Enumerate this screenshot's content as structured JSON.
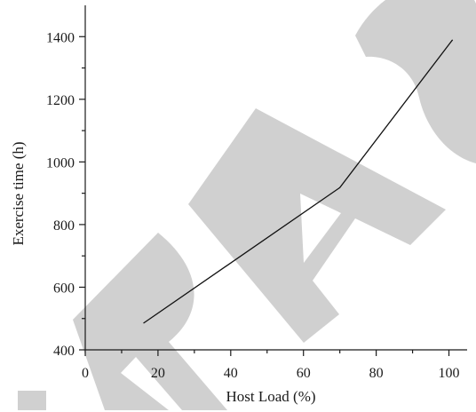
{
  "chart_data": {
    "type": "line",
    "title": "",
    "xlabel": "Host Load (%)",
    "ylabel": "Exercise time (h)",
    "xlim": [
      0,
      105
    ],
    "ylim": [
      400,
      1500
    ],
    "x_ticks": [
      0,
      20,
      40,
      60,
      80,
      100
    ],
    "y_ticks": [
      400,
      600,
      800,
      1000,
      1200,
      1400
    ],
    "grid": false,
    "series": [
      {
        "x": [
          16,
          70,
          101
        ],
        "y": [
          485,
          918,
          1390
        ]
      }
    ],
    "watermark": {
      "description": "large grey diagonal retraction watermark lettering",
      "color": "#c8c8c8"
    }
  }
}
